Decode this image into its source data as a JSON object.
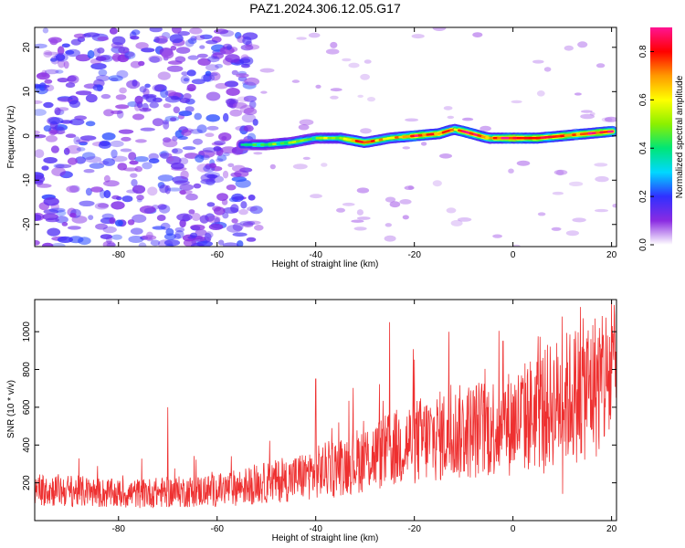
{
  "title": "PAZ1.2024.306.12.05.G17",
  "chart_data": [
    {
      "type": "heatmap",
      "xlabel": "Height of straight line (km)",
      "ylabel": "Frequency (Hz)",
      "xlim": [
        -97,
        21
      ],
      "ylim": [
        -25,
        24.5
      ],
      "xticks": [
        -80,
        -60,
        -40,
        -20,
        0,
        20
      ],
      "yticks": [
        -20,
        -10,
        0,
        10,
        20
      ],
      "colorbar": {
        "label": "Normalized spectral amplitude",
        "range": [
          0,
          0.9
        ],
        "ticks": [
          "0.0",
          "0.2",
          "0.4",
          "0.6",
          "0.8"
        ],
        "colors": [
          "#ffffff",
          "#8a2be2",
          "#3030ff",
          "#00d8ff",
          "#00e676",
          "#8cf000",
          "#ffff00",
          "#ff9900",
          "#ff0000",
          "#ff1493"
        ]
      },
      "noise_region_x": [
        -97,
        -55
      ],
      "signal_line": {
        "x": [
          -55,
          -50,
          -45,
          -40,
          -35,
          -30,
          -25,
          -20,
          -15,
          -12,
          -10,
          -5,
          0,
          5,
          10,
          15,
          20
        ],
        "frequency": [
          -2,
          -2,
          -1.5,
          -0.5,
          -0.5,
          -1.5,
          -0.5,
          0,
          0.5,
          1.5,
          1,
          -0.5,
          -0.5,
          -0.5,
          0,
          0.5,
          1
        ],
        "amplitude": [
          0.35,
          0.45,
          0.5,
          0.45,
          0.55,
          0.8,
          0.6,
          0.85,
          0.75,
          0.7,
          0.9,
          0.75,
          0.9,
          0.85,
          0.8,
          0.85,
          0.9
        ]
      }
    },
    {
      "type": "line",
      "xlabel": "Height of straight line (km)",
      "ylabel": "SNR (10 * v/v)",
      "xlim": [
        -97,
        21
      ],
      "ylim": [
        0,
        1170
      ],
      "xticks": [
        -80,
        -60,
        -40,
        -20,
        0,
        20
      ],
      "yticks": [
        200,
        400,
        600,
        800,
        1000
      ],
      "series": [
        {
          "color": "#ee3030",
          "trend_x": [
            -97,
            -80,
            -60,
            -45,
            -35,
            -25,
            -20,
            -10,
            0,
            10,
            20
          ],
          "trend_y": [
            170,
            140,
            160,
            220,
            290,
            370,
            420,
            470,
            520,
            640,
            760
          ],
          "spikes": [
            [
              -70,
              600
            ],
            [
              -40,
              750
            ],
            [
              -25,
              1050
            ],
            [
              -13,
              1000
            ],
            [
              -2,
              950
            ],
            [
              10,
              1080
            ],
            [
              20,
              1170
            ]
          ]
        }
      ]
    }
  ]
}
